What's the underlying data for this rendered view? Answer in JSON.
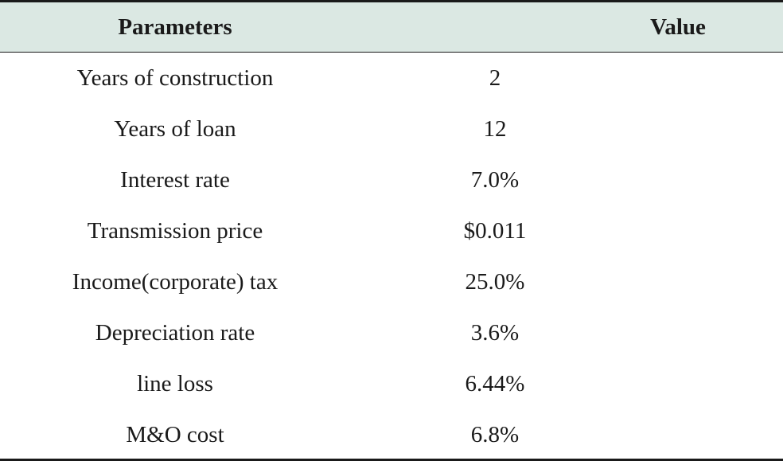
{
  "table": {
    "headers": {
      "parameter": "Parameters",
      "value": "Value"
    },
    "rows": [
      {
        "parameter": "Years of construction",
        "value": "2"
      },
      {
        "parameter": "Years of loan",
        "value": "12"
      },
      {
        "parameter": "Interest rate",
        "value": "7.0%"
      },
      {
        "parameter": "Transmission price",
        "value": "$0.011"
      },
      {
        "parameter": "Income(corporate) tax",
        "value": "25.0%"
      },
      {
        "parameter": "Depreciation rate",
        "value": "3.6%"
      },
      {
        "parameter": "line loss",
        "value": "6.44%"
      },
      {
        "parameter": "M&O cost",
        "value": "6.8%"
      }
    ]
  },
  "colors": {
    "header_background": "#dbe8e3",
    "rule": "#1a1a1a",
    "text": "#1a1a1a"
  }
}
